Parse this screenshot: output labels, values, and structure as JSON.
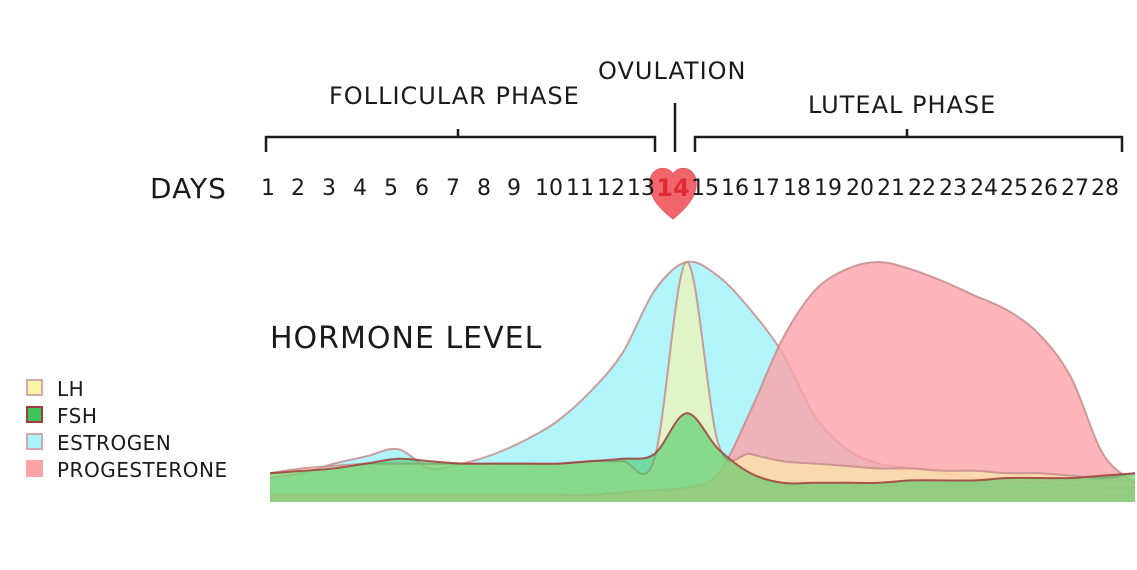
{
  "labels": {
    "follicular": "FOLLICULAR PHASE",
    "ovulation": "OVULATION",
    "luteal": "LUTEAL PHASE",
    "days": "DAYS",
    "hormone_level": "HORMONE LEVEL"
  },
  "days": [
    "1",
    "2",
    "3",
    "4",
    "5",
    "6",
    "7",
    "8",
    "9",
    "10",
    "11",
    "12",
    "13",
    "14",
    "15",
    "16",
    "17",
    "18",
    "19",
    "20",
    "21",
    "22",
    "23",
    "24",
    "25",
    "26",
    "27",
    "28"
  ],
  "ovulation_day": "14",
  "colors": {
    "lh": "#fff3a6",
    "fsh": "#3ec35b",
    "estrogen": "#a8f4fb",
    "progesterone": "#fca3a8",
    "outline": "#c58c8c",
    "fsh_outline": "#a03c3c",
    "heart": "#f1656b",
    "highlight": "#e02a33"
  },
  "legend": [
    {
      "label": "LH",
      "color": "#fff3a6",
      "border": "#d4a9a9"
    },
    {
      "label": "FSH",
      "color": "#3ec35b",
      "border": "#a03c3c"
    },
    {
      "label": "ESTROGEN",
      "color": "#a8f4fb",
      "border": "#d4a9a9"
    },
    {
      "label": "PROGESTERONE",
      "color": "#fca3a8",
      "border": "#fca3a8"
    }
  ],
  "chart_data": {
    "type": "area",
    "x": [
      1,
      2,
      3,
      4,
      5,
      6,
      7,
      8,
      9,
      10,
      11,
      12,
      13,
      14,
      15,
      16,
      17,
      18,
      19,
      20,
      21,
      22,
      23,
      24,
      25,
      26,
      27,
      28
    ],
    "series": [
      {
        "name": "ESTROGEN",
        "values": [
          10,
          12,
          16,
          19,
          22,
          14,
          16,
          20,
          26,
          34,
          46,
          62,
          88,
          100,
          94,
          80,
          62,
          36,
          22,
          16,
          14,
          12,
          10,
          9,
          8,
          7,
          6,
          6
        ]
      },
      {
        "name": "PROGESTERONE",
        "values": [
          3,
          3,
          3,
          3,
          3,
          3,
          3,
          3,
          3,
          3,
          3,
          4,
          5,
          6,
          12,
          38,
          68,
          88,
          97,
          100,
          97,
          92,
          86,
          80,
          70,
          52,
          20,
          8
        ]
      },
      {
        "name": "LH",
        "values": [
          12,
          14,
          15,
          16,
          16,
          16,
          16,
          16,
          16,
          16,
          17,
          17,
          18,
          100,
          24,
          20,
          17,
          16,
          15,
          14,
          14,
          13,
          13,
          12,
          12,
          11,
          10,
          12
        ]
      },
      {
        "name": "FSH",
        "values": [
          12,
          13,
          14,
          16,
          18,
          17,
          16,
          16,
          16,
          16,
          17,
          18,
          20,
          37,
          22,
          12,
          8,
          8,
          8,
          8,
          9,
          9,
          9,
          10,
          10,
          10,
          11,
          12
        ]
      }
    ]
  }
}
